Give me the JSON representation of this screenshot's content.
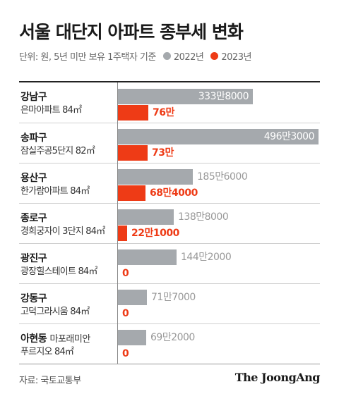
{
  "title": "서울 대단지 아파트 종부세 변화",
  "subtitle": "단위: 원, 5년 미만 보유 1주택자 기준",
  "legend": [
    {
      "name": "2022년",
      "color": "#a5a9ad"
    },
    {
      "name": "2023년",
      "color": "#ee3b16"
    }
  ],
  "source": "자료: 국토교통부",
  "brand": "The JoongAng",
  "chart_data": {
    "type": "bar",
    "orientation": "horizontal",
    "title": "서울 대단지 아파트 종부세 변화",
    "unit": "원",
    "categories": [
      {
        "district": "강남구",
        "apartment": "은마아파트 84㎡"
      },
      {
        "district": "송파구",
        "apartment": "잠실주공5단지 82㎡"
      },
      {
        "district": "용산구",
        "apartment": "한가람아파트 84㎡"
      },
      {
        "district": "종로구",
        "apartment": "경희궁자이 3단지 84㎡"
      },
      {
        "district": "광진구",
        "apartment": "광장힐스테이트 84㎡"
      },
      {
        "district": "강동구",
        "apartment": "고덕그라시움 84㎡"
      },
      {
        "district": "아현동",
        "apartment": "마포래미안 푸르지오 84㎡"
      }
    ],
    "series": [
      {
        "name": "2022년",
        "color": "#a5a9ad",
        "values": [
          3338000,
          4963000,
          1856000,
          1388000,
          1442000,
          717000,
          692000
        ],
        "labels": [
          "333만8000",
          "496만3000",
          "185만6000",
          "138만8000",
          "144만2000",
          "71만7000",
          "69만2000"
        ]
      },
      {
        "name": "2023년",
        "color": "#ee3b16",
        "values": [
          760000,
          730000,
          684000,
          221000,
          0,
          0,
          0
        ],
        "labels": [
          "76만",
          "73만",
          "68만4000",
          "22만1000",
          "0",
          "0",
          "0"
        ]
      }
    ]
  }
}
